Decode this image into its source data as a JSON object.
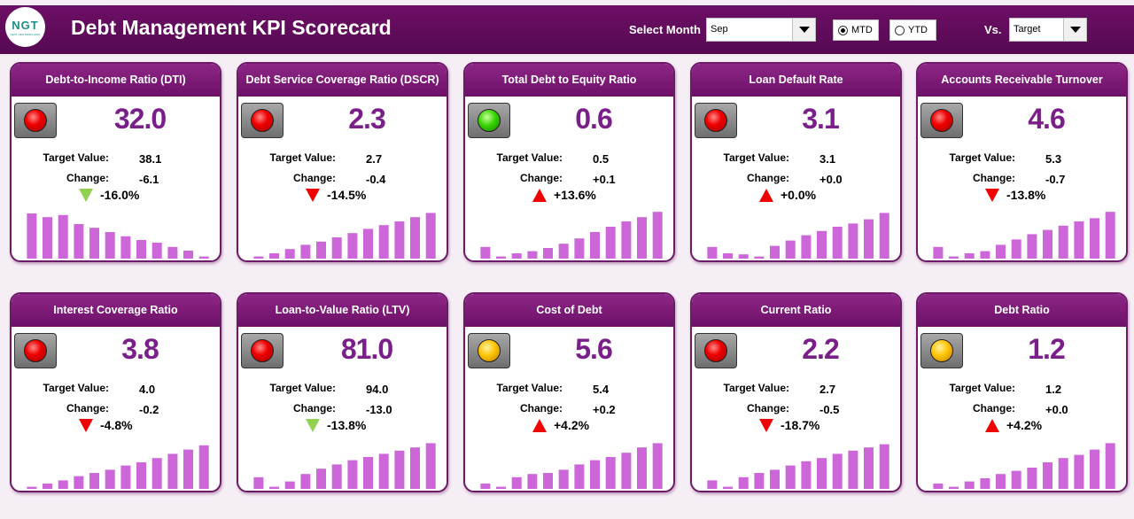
{
  "header": {
    "logo_text": "NGT",
    "logo_sub": "NEXT GEN TEMPLATES",
    "title": "Debt Management KPI Scorecard",
    "select_month_label": "Select Month",
    "month_value": "Sep",
    "radio_mtd": "MTD",
    "radio_ytd": "YTD",
    "radio_selected": "MTD",
    "vs_label": "Vs.",
    "vs_value": "Target"
  },
  "labels": {
    "target": "Target Value:",
    "change": "Change:"
  },
  "colors": {
    "accent": "#6d1068",
    "bar": "#cc66d9",
    "value": "#7a1f8a",
    "red": "#f00000",
    "green": "#92d050",
    "yellow": "#ffc200"
  },
  "kpis": [
    {
      "title": "Debt-to-Income Ratio (DTI)",
      "value": "32.0",
      "target": "38.1",
      "change": "-6.1",
      "pct": "-16.0%",
      "indicator": "red",
      "arrow": "down-green",
      "trend": [
        0.85,
        0.78,
        0.82,
        0.65,
        0.58,
        0.5,
        0.42,
        0.35,
        0.3,
        0.22,
        0.15,
        0.04
      ]
    },
    {
      "title": "Debt Service Coverage Ratio (DSCR)",
      "value": "2.3",
      "target": "2.7",
      "change": "-0.4",
      "pct": "-14.5%",
      "indicator": "red",
      "arrow": "down-red",
      "trend": [
        0.04,
        0.1,
        0.18,
        0.26,
        0.32,
        0.4,
        0.48,
        0.56,
        0.63,
        0.7,
        0.78,
        0.86
      ]
    },
    {
      "title": "Total Debt to Equity Ratio",
      "value": "0.6",
      "target": "0.5",
      "change": "+0.1",
      "pct": "+13.6%",
      "indicator": "green",
      "arrow": "up-red",
      "trend": [
        0.22,
        0.04,
        0.1,
        0.14,
        0.2,
        0.28,
        0.38,
        0.5,
        0.6,
        0.7,
        0.78,
        0.88
      ]
    },
    {
      "title": "Loan Default Rate",
      "value": "3.1",
      "target": "3.1",
      "change": "+0.0",
      "pct": "+0.0%",
      "indicator": "red",
      "arrow": "up-red",
      "trend": [
        0.22,
        0.1,
        0.08,
        0.04,
        0.24,
        0.34,
        0.44,
        0.52,
        0.6,
        0.66,
        0.74,
        0.86
      ]
    },
    {
      "title": "Accounts Receivable Turnover",
      "value": "4.6",
      "target": "5.3",
      "change": "-0.7",
      "pct": "-13.8%",
      "indicator": "red",
      "arrow": "down-red",
      "trend": [
        0.22,
        0.04,
        0.1,
        0.14,
        0.26,
        0.36,
        0.46,
        0.54,
        0.62,
        0.7,
        0.76,
        0.88
      ]
    },
    {
      "title": "Interest Coverage Ratio",
      "value": "3.8",
      "target": "4.0",
      "change": "-0.2",
      "pct": "-4.8%",
      "indicator": "red",
      "arrow": "down-red",
      "trend": [
        0.04,
        0.1,
        0.16,
        0.24,
        0.3,
        0.36,
        0.44,
        0.5,
        0.58,
        0.66,
        0.74,
        0.82
      ]
    },
    {
      "title": "Loan-to-Value Ratio (LTV)",
      "value": "81.0",
      "target": "94.0",
      "change": "-13.0",
      "pct": "-13.8%",
      "indicator": "red",
      "arrow": "down-green",
      "trend": [
        0.22,
        0.04,
        0.14,
        0.28,
        0.38,
        0.46,
        0.54,
        0.6,
        0.66,
        0.72,
        0.78,
        0.86
      ]
    },
    {
      "title": "Cost of Debt",
      "value": "5.6",
      "target": "5.4",
      "change": "+0.2",
      "pct": "+4.2%",
      "indicator": "yellow",
      "arrow": "up-red",
      "trend": [
        0.1,
        0.04,
        0.22,
        0.28,
        0.3,
        0.36,
        0.46,
        0.54,
        0.6,
        0.68,
        0.78,
        0.86
      ]
    },
    {
      "title": "Current Ratio",
      "value": "2.2",
      "target": "2.7",
      "change": "-0.5",
      "pct": "-18.7%",
      "indicator": "red",
      "arrow": "down-red",
      "trend": [
        0.16,
        0.04,
        0.22,
        0.3,
        0.36,
        0.44,
        0.52,
        0.58,
        0.66,
        0.72,
        0.78,
        0.84
      ]
    },
    {
      "title": "Debt Ratio",
      "value": "1.2",
      "target": "1.2",
      "change": "+0.0",
      "pct": "+4.2%",
      "indicator": "yellow",
      "arrow": "up-red",
      "trend": [
        0.1,
        0.04,
        0.14,
        0.2,
        0.28,
        0.34,
        0.4,
        0.5,
        0.58,
        0.64,
        0.74,
        0.86
      ]
    }
  ]
}
